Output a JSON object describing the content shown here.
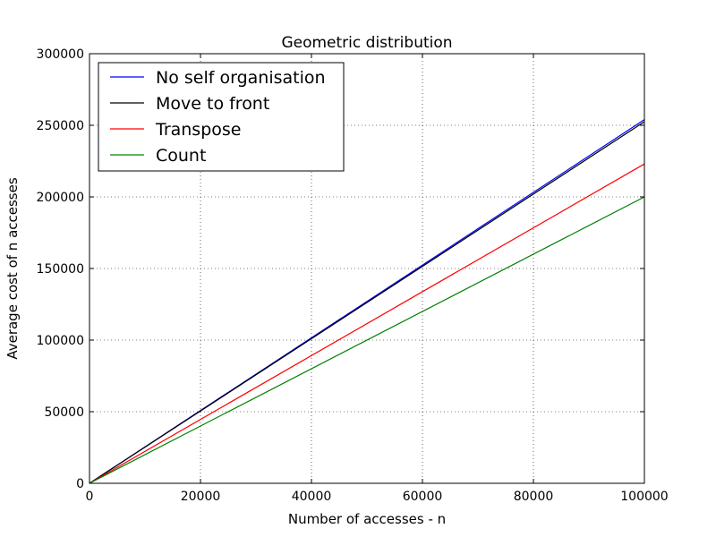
{
  "chart_data": {
    "type": "line",
    "title": "Geometric distribution",
    "xlabel": "Number of accesses - n",
    "ylabel": "Average cost of n accesses",
    "xlim": [
      0,
      100000
    ],
    "ylim": [
      0,
      300000
    ],
    "xticks": [
      0,
      20000,
      40000,
      60000,
      80000,
      100000
    ],
    "yticks": [
      0,
      50000,
      100000,
      150000,
      200000,
      250000,
      300000
    ],
    "xtick_labels": [
      "0",
      "20000",
      "40000",
      "60000",
      "80000",
      "100000"
    ],
    "ytick_labels": [
      "0",
      "50000",
      "100000",
      "150000",
      "200000",
      "250000",
      "300000"
    ],
    "grid": true,
    "legend_position": "top-left",
    "series": [
      {
        "name": "No self organisation",
        "color": "#0000ff",
        "x": [
          0,
          100000
        ],
        "y": [
          0,
          254000
        ]
      },
      {
        "name": "Move to front",
        "color": "#000000",
        "x": [
          0,
          100000
        ],
        "y": [
          0,
          252500
        ]
      },
      {
        "name": "Transpose",
        "color": "#ff0000",
        "x": [
          0,
          100000
        ],
        "y": [
          0,
          223000
        ]
      },
      {
        "name": "Count",
        "color": "#008000",
        "x": [
          0,
          100000
        ],
        "y": [
          0,
          200000
        ]
      }
    ]
  }
}
